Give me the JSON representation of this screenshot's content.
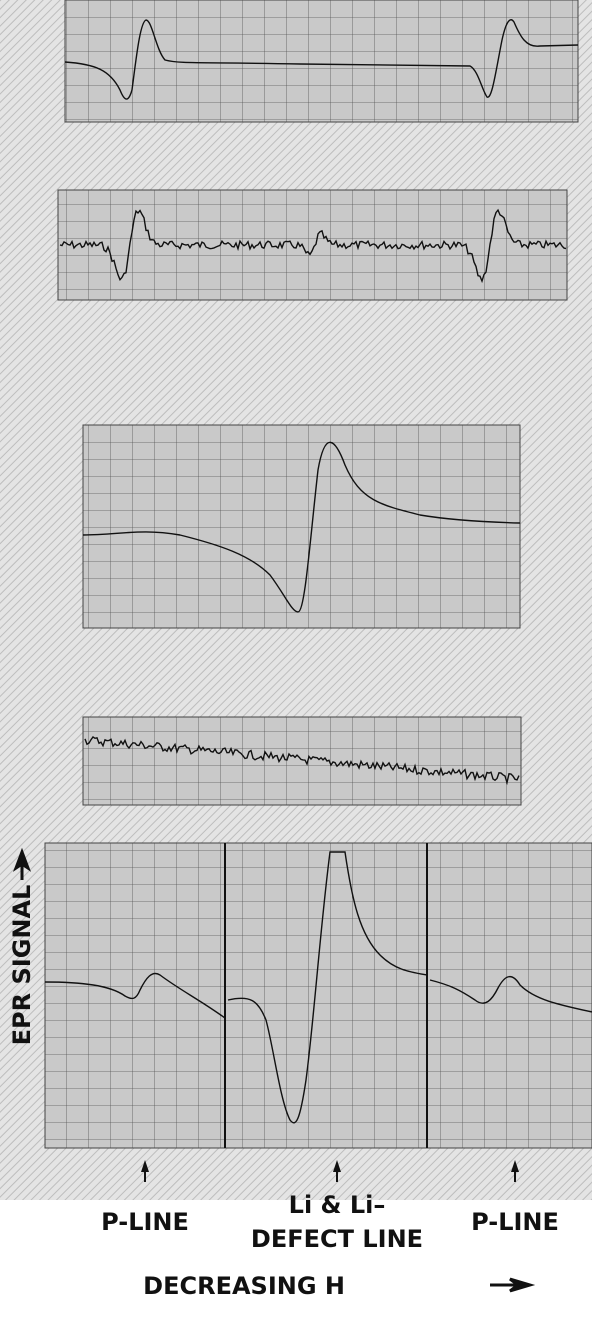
{
  "figure": {
    "y_axis_label": "EPR SIGNAL",
    "markers": [
      {
        "lines": [
          "P-LINE"
        ]
      },
      {
        "lines": [
          "Li & Li–",
          "DEFECT LINE"
        ]
      },
      {
        "lines": [
          "P-LINE"
        ]
      }
    ],
    "x_axis_label": "DECREASING H"
  }
}
